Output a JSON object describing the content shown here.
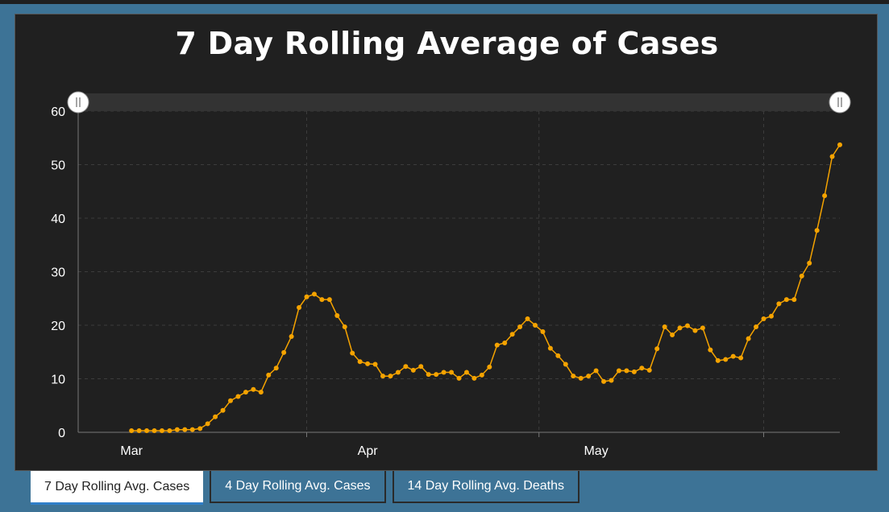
{
  "chart_data": {
    "type": "line",
    "title": "7 Day Rolling Average of Cases",
    "xlabel": "",
    "ylabel": "",
    "ylim": [
      0,
      60
    ],
    "yticks": [
      0,
      10,
      20,
      30,
      40,
      50,
      60
    ],
    "xticks": [
      {
        "label": "Mar",
        "day": 7
      },
      {
        "label": "Apr",
        "day": 38
      },
      {
        "label": "May",
        "day": 68
      }
    ],
    "x_range_days": [
      0,
      100
    ],
    "grid": true,
    "series": [
      {
        "color": "#f5a300",
        "x": [
          7,
          8,
          9,
          10,
          11,
          12,
          13,
          14,
          15,
          16,
          17,
          18,
          19,
          20,
          21,
          22,
          23,
          24,
          25,
          26,
          27,
          28,
          29,
          30,
          31,
          32,
          33,
          34,
          35,
          36,
          37,
          38,
          39,
          40,
          41,
          42,
          43,
          44,
          45,
          46,
          47,
          48,
          49,
          50,
          51,
          52,
          53,
          54,
          55,
          56,
          57,
          58,
          59,
          60,
          61,
          62,
          63,
          64,
          65,
          66,
          67,
          68,
          69,
          70,
          71,
          72,
          73,
          74,
          75,
          76,
          77,
          78,
          79,
          80,
          81,
          82,
          83,
          84,
          85,
          86,
          87,
          88,
          89,
          90,
          91,
          92,
          93,
          94,
          95,
          96,
          97,
          98,
          99,
          100
        ],
        "values": [
          0.3,
          0.3,
          0.3,
          0.3,
          0.3,
          0.3,
          0.5,
          0.5,
          0.5,
          0.7,
          1.6,
          2.9,
          4.1,
          5.9,
          6.7,
          7.5,
          8.0,
          7.5,
          10.7,
          12.0,
          14.9,
          17.9,
          23.3,
          25.3,
          25.8,
          24.8,
          24.8,
          21.8,
          19.7,
          14.8,
          13.2,
          12.8,
          12.7,
          10.5,
          10.5,
          11.2,
          12.3,
          11.6,
          12.3,
          10.8,
          10.8,
          11.2,
          11.2,
          10.1,
          11.2,
          10.1,
          10.7,
          12.2,
          16.3,
          16.7,
          18.3,
          19.7,
          21.2,
          20.0,
          18.8,
          15.7,
          14.3,
          12.7,
          10.5,
          10.1,
          10.5,
          11.5,
          9.5,
          9.7,
          11.5,
          11.5,
          11.3,
          12.0,
          11.6,
          15.6,
          19.7,
          18.2,
          19.5,
          19.9,
          19.0,
          19.5,
          15.4,
          13.4,
          13.6,
          14.2,
          13.9,
          17.5,
          19.7,
          21.2,
          21.7,
          24.0,
          24.8,
          24.8,
          29.2,
          31.6,
          37.7,
          44.2,
          51.5,
          53.7
        ]
      }
    ]
  },
  "tabs": [
    {
      "label": "7 Day Rolling Avg. Cases",
      "active": true
    },
    {
      "label": "4 Day Rolling Avg. Cases",
      "active": false
    },
    {
      "label": "14 Day Rolling Avg. Deaths",
      "active": false
    }
  ]
}
